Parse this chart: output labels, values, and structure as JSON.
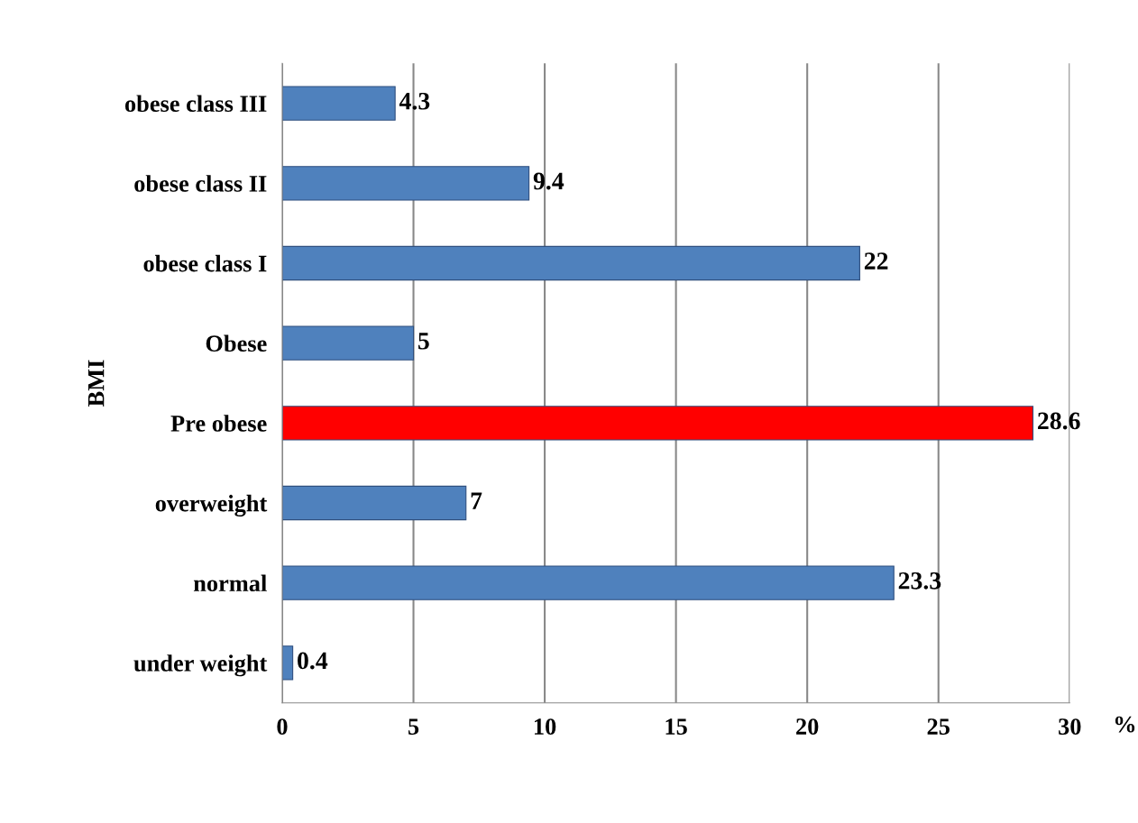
{
  "chart_data": {
    "type": "bar",
    "orientation": "horizontal",
    "categories": [
      "obese class III",
      "obese class II",
      "obese class I",
      "Obese",
      "Pre obese",
      "overweight",
      "normal",
      "under weight"
    ],
    "values": [
      4.3,
      9.4,
      22,
      5,
      28.6,
      7,
      23.3,
      0.4
    ],
    "colors": [
      "#4f81bd",
      "#4f81bd",
      "#4f81bd",
      "#4f81bd",
      "#ff0000",
      "#4f81bd",
      "#4f81bd",
      "#4f81bd"
    ],
    "xlim": [
      0,
      30
    ],
    "xticks": [
      0,
      5,
      10,
      15,
      20,
      25,
      30
    ],
    "xlabel": "%",
    "ylabel": "BMI",
    "grid": "x",
    "data_labels": true
  }
}
